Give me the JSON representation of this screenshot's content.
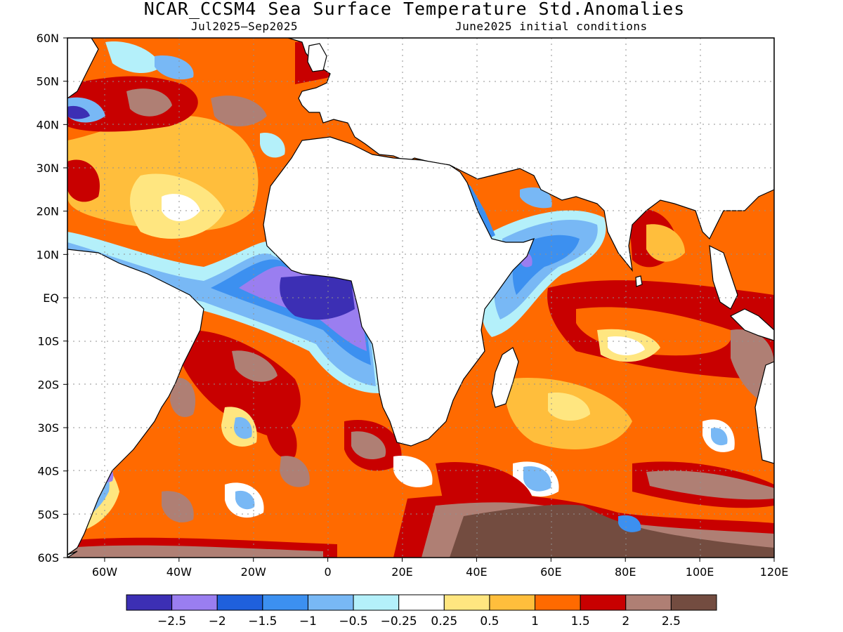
{
  "title": "NCAR_CCSM4 Sea Surface Temperature Std.Anomalies",
  "subtitle_left": "Jul2025–Sep2025",
  "subtitle_right": "June2025 initial conditions",
  "lat_ticks": [
    "60N",
    "50N",
    "40N",
    "30N",
    "20N",
    "10N",
    "EQ",
    "10S",
    "20S",
    "30S",
    "40S",
    "50S",
    "60S"
  ],
  "lon_ticks": [
    "60W",
    "40W",
    "20W",
    "0",
    "20E",
    "40E",
    "60E",
    "80E",
    "100E",
    "120E"
  ],
  "extent": {
    "lon_min": -70,
    "lon_max": 120,
    "lat_min": -60,
    "lat_max": 60
  },
  "colorbar": {
    "colors": [
      "#3c2fb4",
      "#9a7ef0",
      "#1f60dc",
      "#3c90f0",
      "#78b8f5",
      "#b4f0fa",
      "#ffffff",
      "#ffe680",
      "#ffbe3c",
      "#ff6a00",
      "#c80000",
      "#af7f74",
      "#734c40"
    ],
    "labels": [
      "−2.5",
      "−2",
      "−1.5",
      "−1",
      "−0.5",
      "−0.25",
      "0.25",
      "0.5",
      "1",
      "1.5",
      "2",
      "2.5"
    ]
  }
}
